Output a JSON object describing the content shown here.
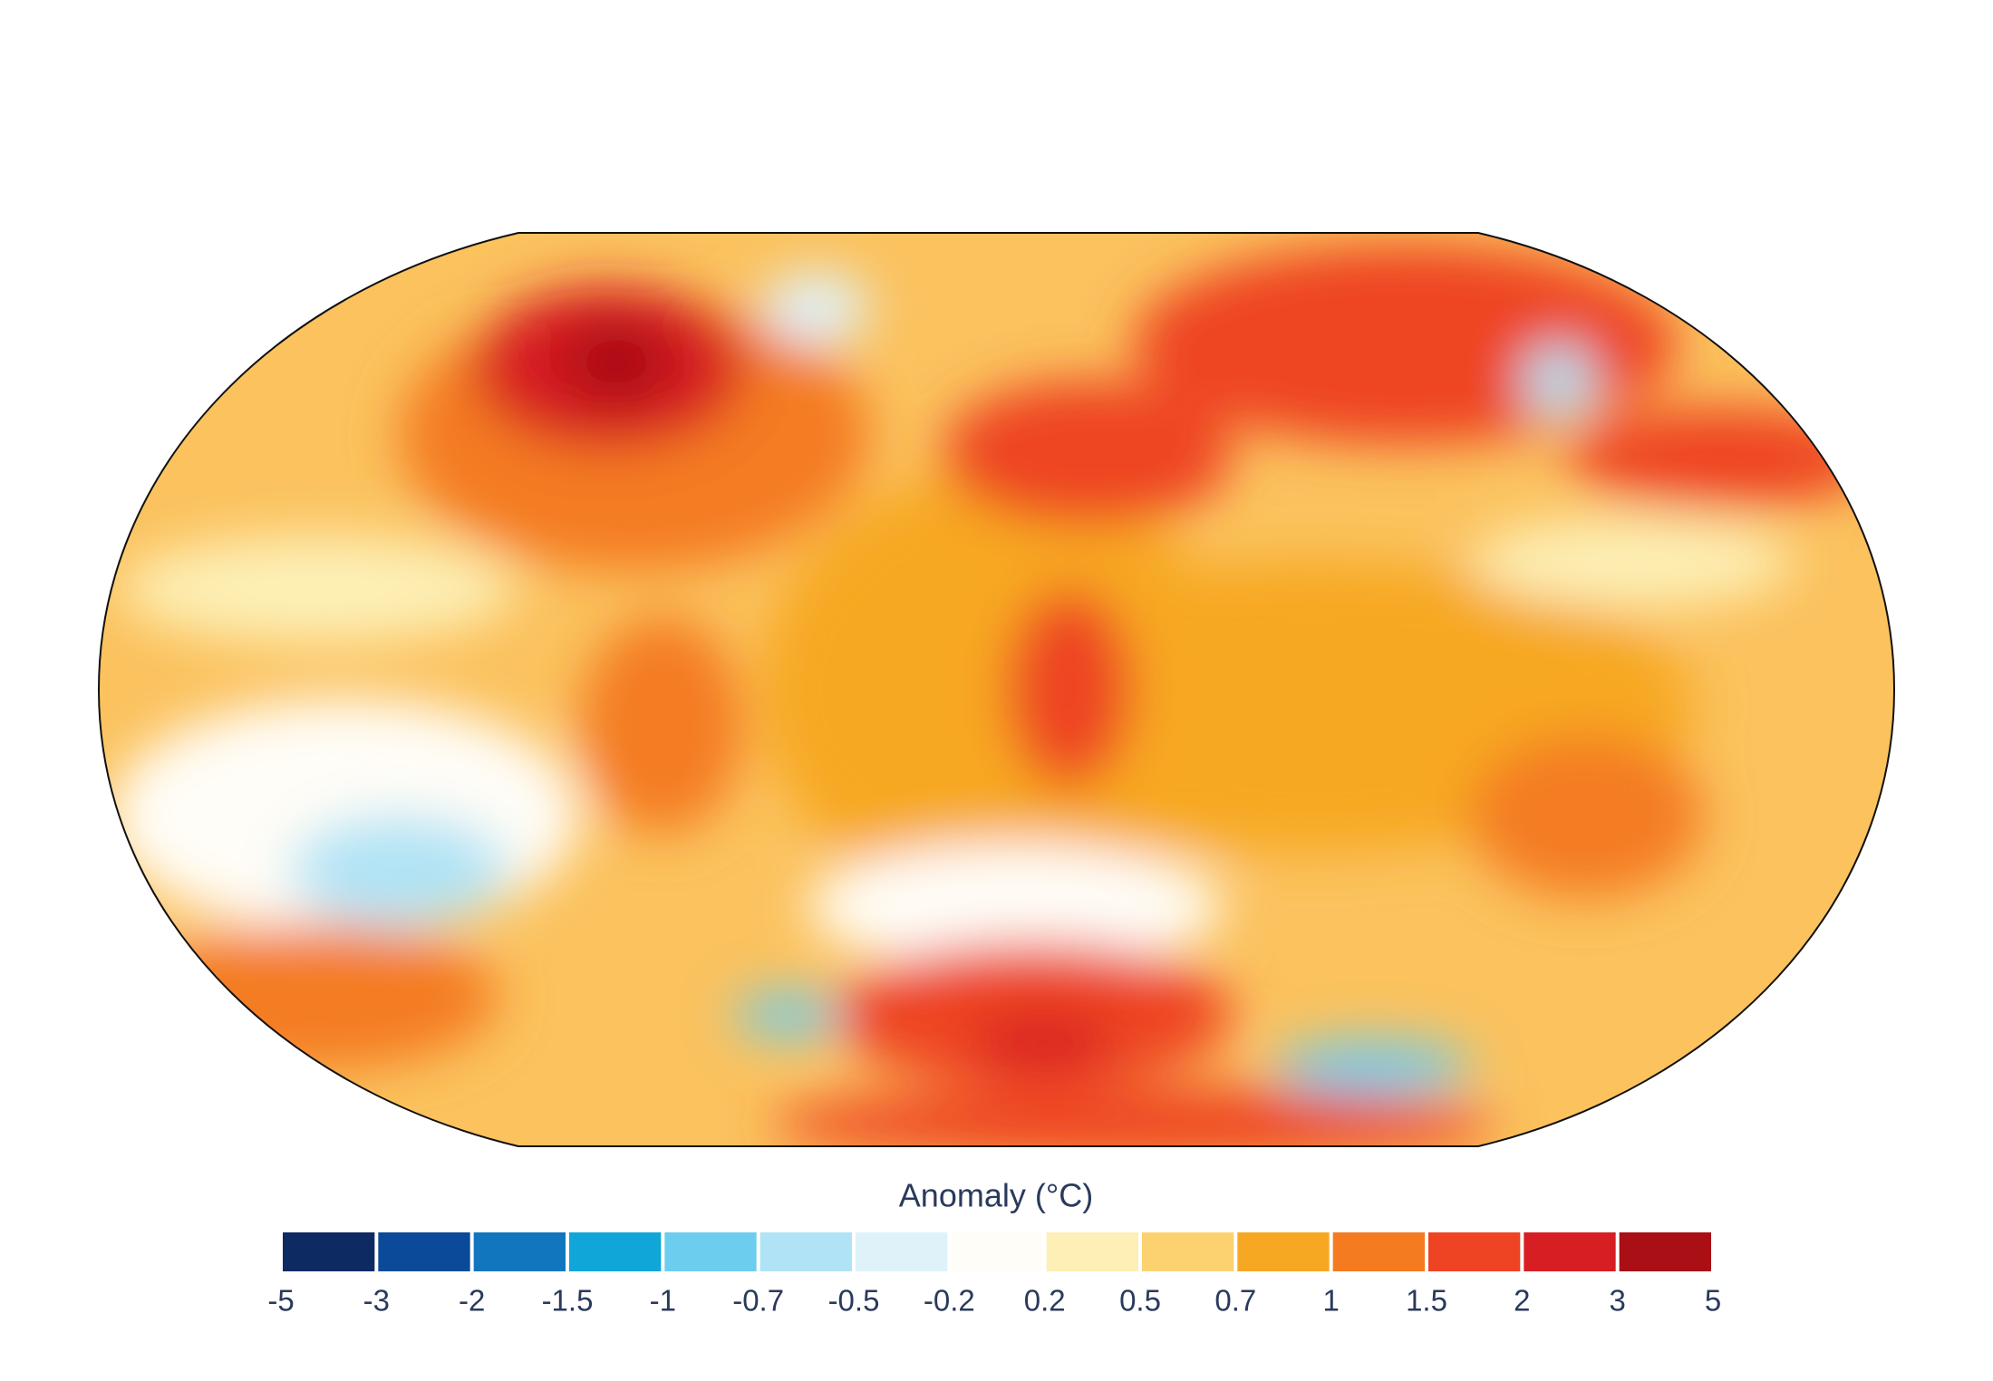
{
  "legend": {
    "title": "Anomaly (°C)",
    "ticks": [
      -5,
      -3,
      -2,
      -1.5,
      -1,
      -0.7,
      -0.5,
      -0.2,
      0.2,
      0.5,
      0.7,
      1,
      1.5,
      2,
      3,
      5
    ],
    "colors": [
      "#0d2a63",
      "#0a4a99",
      "#1276bf",
      "#10a6d8",
      "#6dcdef",
      "#b0e3f5",
      "#dff2fa",
      "#fffdf7",
      "#fdefb5",
      "#fcd270",
      "#f7a823",
      "#f47b20",
      "#ee4424",
      "#d71e22",
      "#a90f14"
    ]
  }
}
